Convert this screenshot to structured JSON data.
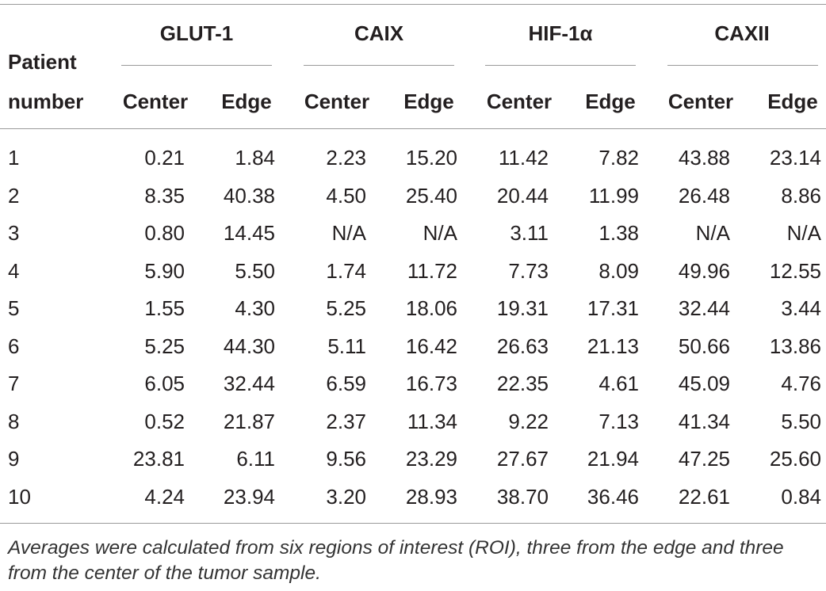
{
  "table": {
    "row_header": "Patient number",
    "groups": [
      {
        "name": "GLUT-1",
        "columns": [
          "Center",
          "Edge"
        ]
      },
      {
        "name": "CAIX",
        "columns": [
          "Center",
          "Edge"
        ]
      },
      {
        "name": "HIF-1α",
        "columns": [
          "Center",
          "Edge"
        ]
      },
      {
        "name": "CAXII",
        "columns": [
          "Center",
          "Edge"
        ]
      }
    ],
    "rows": [
      [
        "1",
        "0.21",
        "1.84",
        "2.23",
        "15.20",
        "11.42",
        "7.82",
        "43.88",
        "23.14"
      ],
      [
        "2",
        "8.35",
        "40.38",
        "4.50",
        "25.40",
        "20.44",
        "11.99",
        "26.48",
        "8.86"
      ],
      [
        "3",
        "0.80",
        "14.45",
        "N/A",
        "N/A",
        "3.11",
        "1.38",
        "N/A",
        "N/A"
      ],
      [
        "4",
        "5.90",
        "5.50",
        "1.74",
        "11.72",
        "7.73",
        "8.09",
        "49.96",
        "12.55"
      ],
      [
        "5",
        "1.55",
        "4.30",
        "5.25",
        "18.06",
        "19.31",
        "17.31",
        "32.44",
        "3.44"
      ],
      [
        "6",
        "5.25",
        "44.30",
        "5.11",
        "16.42",
        "26.63",
        "21.13",
        "50.66",
        "13.86"
      ],
      [
        "7",
        "6.05",
        "32.44",
        "6.59",
        "16.73",
        "22.35",
        "4.61",
        "45.09",
        "4.76"
      ],
      [
        "8",
        "0.52",
        "21.87",
        "2.37",
        "11.34",
        "9.22",
        "7.13",
        "41.34",
        "5.50"
      ],
      [
        "9",
        "23.81",
        "6.11",
        "9.56",
        "23.29",
        "27.67",
        "21.94",
        "47.25",
        "25.60"
      ],
      [
        "10",
        "4.24",
        "23.94",
        "3.20",
        "28.93",
        "38.70",
        "36.46",
        "22.61",
        "0.84"
      ]
    ],
    "footnote": "Averages were calculated from six regions of interest (ROI), three from the edge and three from the center of the tumor sample."
  }
}
